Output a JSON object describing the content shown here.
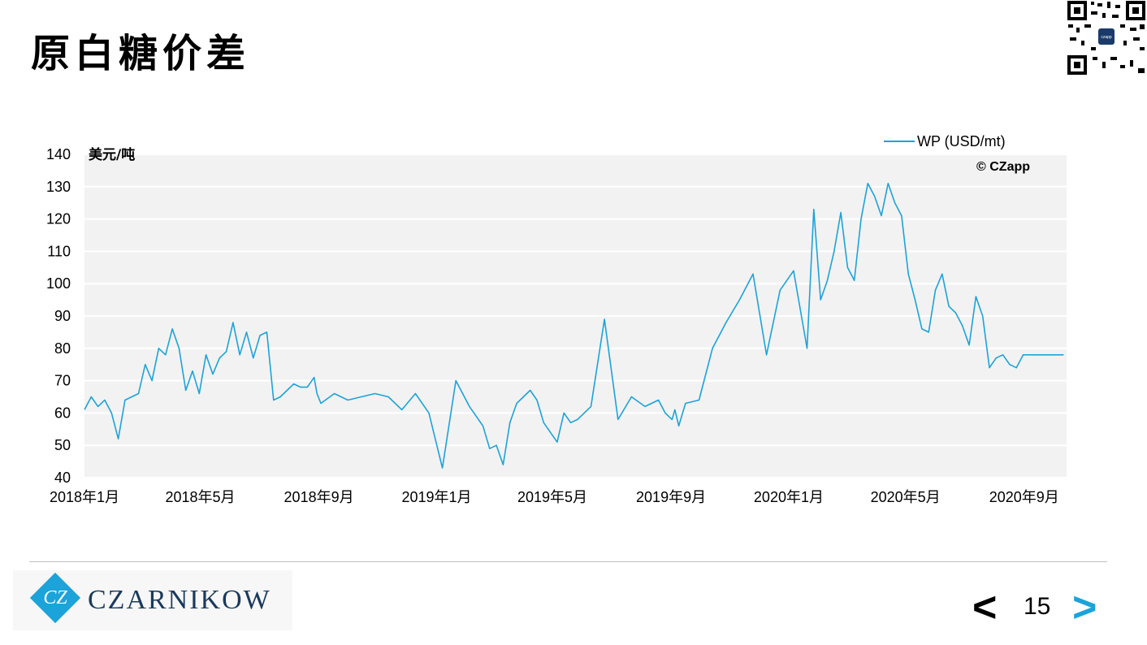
{
  "page": {
    "title": "原白糖价差",
    "page_number": "15",
    "nav_prev": "<",
    "nav_next": ">",
    "logo_text": "CZARNIKOW",
    "logo_mark": "CZ"
  },
  "colors": {
    "line": "#1ca3d9",
    "plot_bg": "#f2f2f2",
    "accent": "#1ca3d9"
  },
  "chart_data": {
    "type": "line",
    "title": "",
    "ylabel": "美元/吨",
    "copyright": "© CZapp",
    "ylim": [
      40,
      140
    ],
    "yticks": [
      40,
      50,
      60,
      70,
      80,
      90,
      100,
      110,
      120,
      130,
      140
    ],
    "xlim": [
      "2018-01-01",
      "2020-10-15"
    ],
    "xticks": [
      {
        "date": "2018-01-01",
        "label": "2018年1月"
      },
      {
        "date": "2018-05-01",
        "label": "2018年5月"
      },
      {
        "date": "2018-09-01",
        "label": "2018年9月"
      },
      {
        "date": "2019-01-01",
        "label": "2019年1月"
      },
      {
        "date": "2019-05-01",
        "label": "2019年5月"
      },
      {
        "date": "2019-09-01",
        "label": "2019年9月"
      },
      {
        "date": "2020-01-01",
        "label": "2020年1月"
      },
      {
        "date": "2020-05-01",
        "label": "2020年5月"
      },
      {
        "date": "2020-09-01",
        "label": "2020年9月"
      }
    ],
    "legend_position": "top-right",
    "grid": true,
    "series": [
      {
        "name": "WP (USD/mt)",
        "x": [
          "2018-01-01",
          "2018-01-08",
          "2018-01-15",
          "2018-01-22",
          "2018-01-29",
          "2018-02-05",
          "2018-02-12",
          "2018-02-19",
          "2018-02-26",
          "2018-03-05",
          "2018-03-12",
          "2018-03-19",
          "2018-03-26",
          "2018-04-02",
          "2018-04-09",
          "2018-04-16",
          "2018-04-23",
          "2018-04-30",
          "2018-05-07",
          "2018-05-14",
          "2018-05-21",
          "2018-05-28",
          "2018-06-04",
          "2018-06-11",
          "2018-06-18",
          "2018-06-25",
          "2018-07-02",
          "2018-07-09",
          "2018-07-16",
          "2018-07-23",
          "2018-07-30",
          "2018-08-06",
          "2018-08-13",
          "2018-08-20",
          "2018-08-27",
          "2018-08-30",
          "2018-09-03",
          "2018-09-17",
          "2018-10-01",
          "2018-10-15",
          "2018-10-29",
          "2018-11-12",
          "2018-11-26",
          "2018-12-10",
          "2018-12-24",
          "2019-01-07",
          "2019-01-21",
          "2019-02-04",
          "2019-02-18",
          "2019-02-25",
          "2019-03-04",
          "2019-03-11",
          "2019-03-18",
          "2019-03-25",
          "2019-04-01",
          "2019-04-08",
          "2019-04-15",
          "2019-04-22",
          "2019-04-29",
          "2019-05-06",
          "2019-05-13",
          "2019-05-20",
          "2019-05-27",
          "2019-06-10",
          "2019-06-24",
          "2019-07-08",
          "2019-07-22",
          "2019-08-05",
          "2019-08-19",
          "2019-08-26",
          "2019-09-02",
          "2019-09-05",
          "2019-09-09",
          "2019-09-16",
          "2019-09-30",
          "2019-10-14",
          "2019-10-28",
          "2019-11-11",
          "2019-11-25",
          "2019-12-09",
          "2019-12-23",
          "2020-01-06",
          "2020-01-20",
          "2020-01-27",
          "2020-02-03",
          "2020-02-10",
          "2020-02-17",
          "2020-02-24",
          "2020-03-02",
          "2020-03-09",
          "2020-03-16",
          "2020-03-23",
          "2020-03-30",
          "2020-04-06",
          "2020-04-13",
          "2020-04-20",
          "2020-04-27",
          "2020-05-04",
          "2020-05-11",
          "2020-05-18",
          "2020-05-25",
          "2020-06-01",
          "2020-06-08",
          "2020-06-15",
          "2020-06-22",
          "2020-06-29",
          "2020-07-06",
          "2020-07-13",
          "2020-07-20",
          "2020-07-27",
          "2020-08-03",
          "2020-08-10",
          "2020-08-17",
          "2020-08-24",
          "2020-08-31",
          "2020-09-07",
          "2020-09-14",
          "2020-09-21",
          "2020-09-28",
          "2020-10-05",
          "2020-10-12"
        ],
        "values": [
          61,
          65,
          62,
          64,
          60,
          52,
          64,
          65,
          66,
          75,
          70,
          80,
          78,
          86,
          80,
          67,
          73,
          66,
          78,
          72,
          77,
          79,
          88,
          78,
          85,
          77,
          84,
          85,
          64,
          65,
          67,
          69,
          68,
          68,
          71,
          66,
          63,
          66,
          64,
          65,
          66,
          65,
          61,
          66,
          60,
          43,
          70,
          62,
          56,
          49,
          50,
          44,
          57,
          63,
          65,
          67,
          64,
          57,
          54,
          51,
          60,
          57,
          58,
          62,
          89,
          58,
          65,
          62,
          64,
          60,
          58,
          61,
          56,
          63,
          64,
          80,
          88,
          95,
          103,
          78,
          98,
          104,
          80,
          123,
          95,
          101,
          110,
          122,
          105,
          101,
          120,
          131,
          127,
          121,
          131,
          125,
          121,
          103,
          95,
          86,
          85,
          98,
          103,
          93,
          91,
          87,
          81,
          96,
          90,
          74,
          77,
          78,
          75,
          74,
          78,
          78,
          78,
          78,
          78,
          78,
          78
        ],
        "display_mode": "line"
      }
    ]
  }
}
